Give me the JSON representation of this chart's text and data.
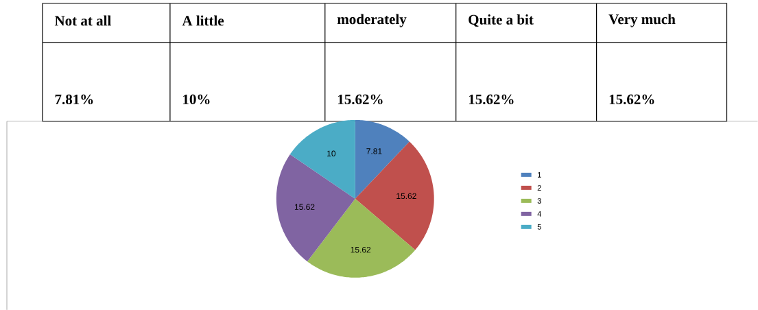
{
  "chart_data": {
    "type": "pie",
    "categories": [
      "1",
      "2",
      "3",
      "4",
      "5"
    ],
    "values": [
      7.81,
      15.62,
      15.62,
      15.62,
      10
    ],
    "colors": [
      "#4f81bd",
      "#c0504d",
      "#9bbb59",
      "#8064a2",
      "#4bacc6"
    ],
    "data_labels": true,
    "legend": "right",
    "annotations": [
      "Not at all",
      "A little",
      "moderately",
      "Quite a bit",
      "Very much",
      "7.81%",
      "10%",
      "15.62%",
      "15.62%",
      "15.62%"
    ]
  }
}
